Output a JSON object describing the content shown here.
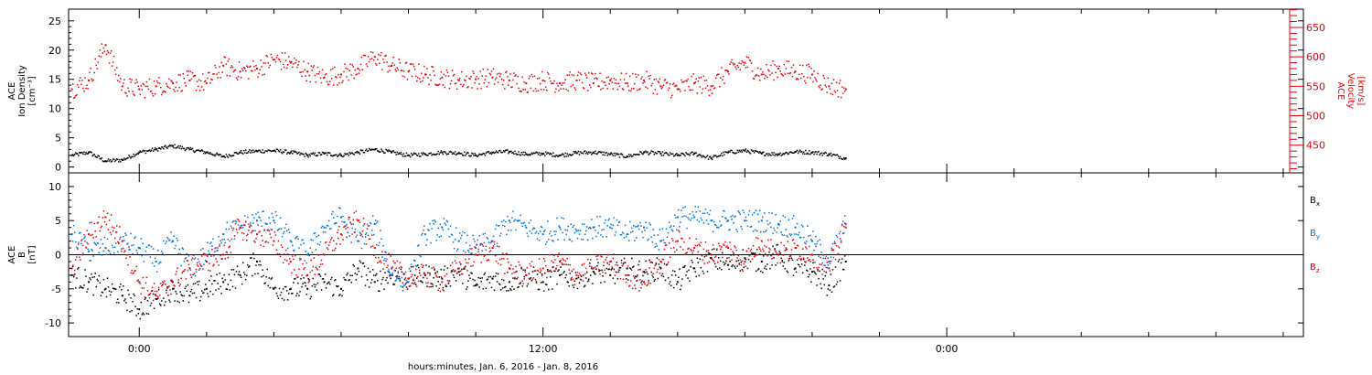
{
  "chart_data": {
    "type": "scatter",
    "xlabel": "hours:minutes, Jan.  6, 2016 - Jan.  8, 2016",
    "x_axis": {
      "range_hours": [
        -2.1,
        34.6
      ],
      "ticks": [
        {
          "hour": 0,
          "label": "0:00"
        },
        {
          "hour": 12,
          "label": "12:00"
        },
        {
          "hour": 24,
          "label": "0:00"
        }
      ],
      "minor_tick_hours": [
        2,
        4,
        6,
        8,
        10,
        14,
        16,
        18,
        20,
        22,
        26,
        28,
        30,
        32,
        34
      ]
    },
    "panels": [
      {
        "id": "plasma",
        "ylabel_left": [
          "ACE",
          "Ion Density",
          "[cm⁻³]"
        ],
        "ylabel_right": [
          "ACE",
          "Velocity",
          "[km/s]"
        ],
        "left_axis": {
          "range": [
            -1,
            27
          ],
          "ticks": [
            0,
            5,
            10,
            15,
            20,
            25
          ]
        },
        "right_axis": {
          "range": [
            403,
            681
          ],
          "ticks": [
            450,
            500,
            550,
            600,
            650
          ],
          "color": "#e8000b"
        },
        "series": [
          {
            "axis": "left",
            "color": "#000000",
            "x": [
              -2.0,
              -1.5,
              -1.0,
              -0.5,
              0.0,
              0.5,
              1.0,
              1.5,
              2.0,
              2.5,
              3.0,
              3.5,
              4.0,
              4.5,
              5.0,
              5.5,
              6.0,
              6.5,
              7.0,
              7.5,
              8.0,
              8.5,
              9.0,
              9.5,
              10.0,
              10.5,
              11.0,
              11.5,
              12.0,
              12.5,
              13.0,
              13.5,
              14.0,
              14.5,
              15.0,
              15.5,
              16.0,
              16.5,
              17.0,
              17.5,
              18.0,
              18.5,
              19.0,
              19.5,
              20.0,
              20.5,
              21.0
            ],
            "y": [
              2.0,
              2.5,
              1.0,
              1.2,
              2.5,
              3.0,
              3.6,
              3.0,
              2.5,
              1.8,
              2.5,
              2.7,
              2.8,
              2.5,
              2.0,
              2.3,
              2.0,
              2.5,
              3.0,
              2.5,
              2.0,
              2.2,
              2.5,
              2.4,
              2.0,
              2.5,
              2.6,
              2.2,
              2.3,
              2.0,
              2.4,
              2.5,
              2.2,
              1.8,
              2.5,
              2.3,
              2.0,
              2.3,
              1.5,
              2.5,
              2.8,
              2.3,
              2.2,
              2.6,
              2.5,
              2.2,
              1.5
            ]
          },
          {
            "axis": "right",
            "color": "#e8000b",
            "x": [
              -2.0,
              -1.5,
              -1.0,
              -0.5,
              0.0,
              0.5,
              1.0,
              1.5,
              2.0,
              2.5,
              3.0,
              3.5,
              4.0,
              4.5,
              5.0,
              5.5,
              6.0,
              6.5,
              7.0,
              7.5,
              8.0,
              8.5,
              9.0,
              9.5,
              10.0,
              10.5,
              11.0,
              11.5,
              12.0,
              12.5,
              13.0,
              13.5,
              14.0,
              14.5,
              15.0,
              15.5,
              16.0,
              16.5,
              17.0,
              17.5,
              18.0,
              18.5,
              19.0,
              19.5,
              20.0,
              20.5,
              21.0
            ],
            "y": [
              545,
              560,
              620,
              550,
              545,
              550,
              555,
              560,
              555,
              585,
              575,
              580,
              595,
              590,
              575,
              565,
              570,
              580,
              600,
              585,
              575,
              570,
              565,
              560,
              562,
              565,
              560,
              555,
              560,
              555,
              560,
              555,
              560,
              555,
              560,
              550,
              545,
              555,
              550,
              575,
              590,
              570,
              580,
              575,
              570,
              550,
              545
            ]
          }
        ]
      },
      {
        "id": "magnetic",
        "ylabel_left": [
          "ACE",
          "B",
          "[nT]"
        ],
        "left_axis": {
          "range": [
            -12,
            12
          ],
          "ticks": [
            -10,
            -5,
            0,
            5,
            10
          ]
        },
        "zero_line": true,
        "legend": [
          {
            "label": "Bx",
            "color": "#000000"
          },
          {
            "label": "By",
            "color": "#0072d4"
          },
          {
            "label": "Bz",
            "color": "#e8000b"
          }
        ],
        "series": [
          {
            "name": "Bx",
            "color": "#000000",
            "x": [
              -2.0,
              -1.5,
              -1.0,
              -0.5,
              0.0,
              0.5,
              1.0,
              1.5,
              2.0,
              2.5,
              3.0,
              3.5,
              4.0,
              4.5,
              5.0,
              5.5,
              6.0,
              6.5,
              7.0,
              7.5,
              8.0,
              8.5,
              9.0,
              9.5,
              10.0,
              10.5,
              11.0,
              11.5,
              12.0,
              12.5,
              13.0,
              13.5,
              14.0,
              14.5,
              15.0,
              15.5,
              16.0,
              16.5,
              17.0,
              17.5,
              18.0,
              18.5,
              19.0,
              19.5,
              20.0,
              20.5,
              21.0
            ],
            "y": [
              -3.0,
              -4.0,
              -5.0,
              -6.0,
              -8.0,
              -6.5,
              -5.0,
              -6.0,
              -5.0,
              -4.0,
              -3.0,
              -1.0,
              -5.0,
              -5.0,
              -5.0,
              -4.0,
              -5.0,
              -2.0,
              -4.0,
              -3.0,
              -3.5,
              -3.0,
              -3.5,
              -2.5,
              -4.5,
              -3.5,
              -4.0,
              -3.0,
              -4.0,
              -3.0,
              -3.5,
              -2.5,
              -3.0,
              -2.0,
              -2.5,
              -2.0,
              -4.0,
              -2.0,
              -0.5,
              -1.5,
              -0.5,
              -1.0,
              0.0,
              -2.0,
              -2.5,
              -4.5,
              -1.0
            ]
          },
          {
            "name": "By",
            "color": "#0072d4",
            "x": [
              -2.0,
              -1.5,
              -1.0,
              -0.5,
              0.0,
              0.5,
              1.0,
              1.5,
              2.0,
              2.5,
              3.0,
              3.5,
              4.0,
              4.5,
              5.0,
              5.5,
              6.0,
              6.5,
              7.0,
              7.5,
              8.0,
              8.5,
              9.0,
              9.5,
              10.0,
              10.5,
              11.0,
              11.5,
              12.0,
              12.5,
              13.0,
              13.5,
              14.0,
              14.5,
              15.0,
              15.5,
              16.0,
              16.5,
              17.0,
              17.5,
              18.0,
              18.5,
              19.0,
              19.5,
              20.0,
              20.5,
              21.0
            ],
            "y": [
              3.0,
              0.5,
              1.0,
              2.0,
              1.0,
              -1.0,
              2.0,
              -2.0,
              0.0,
              3.0,
              4.0,
              5.0,
              5.0,
              2.0,
              0.0,
              4.0,
              5.5,
              2.0,
              4.5,
              -3.0,
              -4.0,
              3.0,
              4.0,
              2.0,
              1.0,
              2.0,
              5.0,
              4.0,
              3.0,
              4.0,
              3.5,
              4.0,
              4.0,
              3.0,
              4.0,
              2.0,
              5.5,
              5.5,
              5.0,
              5.0,
              5.0,
              5.0,
              4.5,
              4.0,
              2.0,
              -1.0,
              4.5
            ]
          },
          {
            "name": "Bz",
            "color": "#e8000b",
            "x": [
              -2.0,
              -1.5,
              -1.0,
              -0.5,
              0.0,
              0.5,
              1.0,
              1.5,
              2.0,
              2.5,
              3.0,
              3.5,
              4.0,
              4.5,
              5.0,
              5.5,
              6.0,
              6.5,
              7.0,
              7.5,
              8.0,
              8.5,
              9.0,
              9.5,
              10.0,
              10.5,
              11.0,
              11.5,
              12.0,
              12.5,
              13.0,
              13.5,
              14.0,
              14.5,
              15.0,
              15.5,
              16.0,
              16.5,
              17.0,
              17.5,
              18.0,
              18.5,
              19.0,
              19.5,
              20.0,
              20.5,
              21.0
            ],
            "y": [
              -2.0,
              3.0,
              5.5,
              2.0,
              -4.0,
              -6.0,
              -4.0,
              -2.0,
              -1.0,
              0.0,
              4.0,
              3.0,
              2.0,
              -1.0,
              -3.0,
              0.0,
              3.0,
              5.0,
              1.0,
              -2.0,
              -3.5,
              -3.0,
              -4.0,
              -2.0,
              0.0,
              1.0,
              -2.0,
              -3.0,
              -2.0,
              -1.0,
              -3.0,
              -2.0,
              -1.0,
              -3.0,
              -4.0,
              -1.0,
              2.0,
              1.0,
              0.0,
              1.0,
              -1.0,
              2.0,
              0.0,
              1.0,
              0.0,
              -2.0,
              4.0
            ]
          }
        ]
      }
    ]
  }
}
